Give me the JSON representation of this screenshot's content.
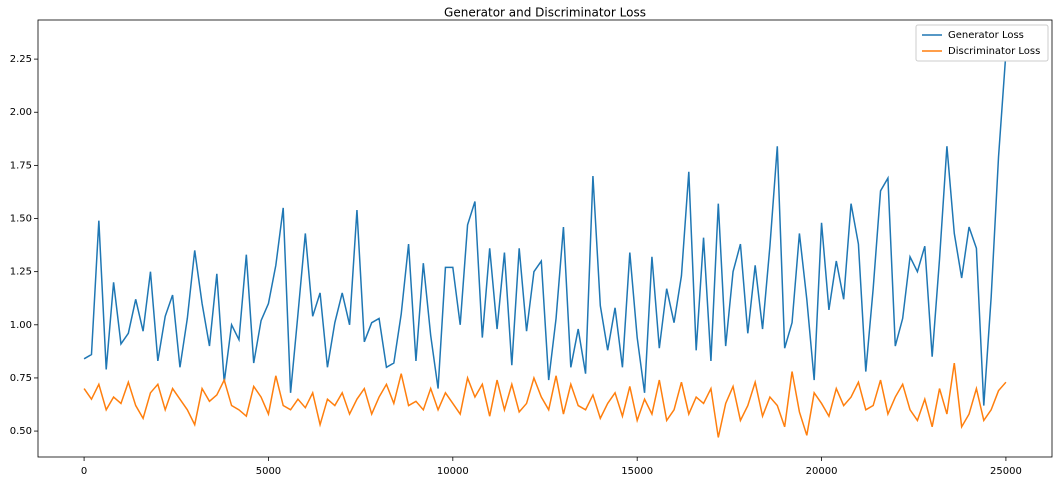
{
  "chart_data": {
    "type": "line",
    "title": "Generator and Discriminator Loss",
    "x": [
      0,
      200,
      400,
      600,
      800,
      1000,
      1200,
      1400,
      1600,
      1800,
      2000,
      2200,
      2400,
      2600,
      2800,
      3000,
      3200,
      3400,
      3600,
      3800,
      4000,
      4200,
      4400,
      4600,
      4800,
      5000,
      5200,
      5400,
      5600,
      5800,
      6000,
      6200,
      6400,
      6600,
      6800,
      7000,
      7200,
      7400,
      7600,
      7800,
      8000,
      8200,
      8400,
      8600,
      8800,
      9000,
      9200,
      9400,
      9600,
      9800,
      10000,
      10200,
      10400,
      10600,
      10800,
      11000,
      11200,
      11400,
      11600,
      11800,
      12000,
      12200,
      12400,
      12600,
      12800,
      13000,
      13200,
      13400,
      13600,
      13800,
      14000,
      14200,
      14400,
      14600,
      14800,
      15000,
      15200,
      15400,
      15600,
      15800,
      16000,
      16200,
      16400,
      16600,
      16800,
      17000,
      17200,
      17400,
      17600,
      17800,
      18000,
      18200,
      18400,
      18600,
      18800,
      19000,
      19200,
      19400,
      19600,
      19800,
      20000,
      20200,
      20400,
      20600,
      20800,
      21000,
      21200,
      21400,
      21600,
      21800,
      22000,
      22200,
      22400,
      22600,
      22800,
      23000,
      23200,
      23400,
      23600,
      23800,
      24000,
      24200,
      24400,
      24600,
      24800,
      25000
    ],
    "series": [
      {
        "name": "Generator Loss",
        "color": "#1f77b4",
        "values": [
          0.84,
          0.86,
          1.49,
          0.79,
          1.2,
          0.91,
          0.96,
          1.12,
          0.97,
          1.25,
          0.83,
          1.04,
          1.14,
          0.8,
          1.03,
          1.35,
          1.1,
          0.9,
          1.24,
          0.73,
          1.0,
          0.93,
          1.33,
          0.82,
          1.02,
          1.1,
          1.28,
          1.55,
          0.68,
          1.05,
          1.43,
          1.04,
          1.15,
          0.8,
          1.01,
          1.15,
          1.0,
          1.54,
          0.92,
          1.01,
          1.03,
          0.8,
          0.82,
          1.05,
          1.38,
          0.83,
          1.29,
          0.95,
          0.7,
          1.27,
          1.27,
          1.0,
          1.47,
          1.58,
          0.94,
          1.36,
          0.98,
          1.34,
          0.81,
          1.36,
          0.97,
          1.25,
          1.3,
          0.74,
          1.03,
          1.46,
          0.8,
          0.98,
          0.77,
          1.7,
          1.09,
          0.88,
          1.08,
          0.8,
          1.34,
          0.94,
          0.68,
          1.32,
          0.89,
          1.17,
          1.01,
          1.23,
          1.72,
          0.88,
          1.41,
          0.83,
          1.57,
          0.9,
          1.25,
          1.38,
          0.96,
          1.28,
          0.98,
          1.37,
          1.84,
          0.89,
          1.01,
          1.43,
          1.12,
          0.74,
          1.48,
          1.07,
          1.3,
          1.12,
          1.57,
          1.38,
          0.78,
          1.17,
          1.63,
          1.69,
          0.9,
          1.03,
          1.32,
          1.25,
          1.37,
          0.85,
          1.31,
          1.84,
          1.43,
          1.22,
          1.46,
          1.36,
          0.62,
          1.13,
          1.79,
          2.28
        ]
      },
      {
        "name": "Discriminator Loss",
        "color": "#ff7f0e",
        "values": [
          0.7,
          0.65,
          0.72,
          0.6,
          0.66,
          0.63,
          0.73,
          0.62,
          0.56,
          0.68,
          0.72,
          0.6,
          0.7,
          0.65,
          0.6,
          0.53,
          0.7,
          0.64,
          0.67,
          0.74,
          0.62,
          0.6,
          0.57,
          0.71,
          0.66,
          0.58,
          0.76,
          0.62,
          0.6,
          0.65,
          0.61,
          0.68,
          0.53,
          0.65,
          0.62,
          0.68,
          0.58,
          0.65,
          0.7,
          0.58,
          0.66,
          0.72,
          0.63,
          0.77,
          0.62,
          0.64,
          0.6,
          0.7,
          0.6,
          0.68,
          0.63,
          0.58,
          0.75,
          0.66,
          0.72,
          0.57,
          0.74,
          0.6,
          0.72,
          0.59,
          0.63,
          0.75,
          0.66,
          0.6,
          0.76,
          0.58,
          0.72,
          0.62,
          0.6,
          0.67,
          0.56,
          0.63,
          0.68,
          0.57,
          0.71,
          0.55,
          0.65,
          0.58,
          0.74,
          0.55,
          0.6,
          0.73,
          0.58,
          0.66,
          0.63,
          0.7,
          0.47,
          0.63,
          0.71,
          0.55,
          0.62,
          0.73,
          0.57,
          0.66,
          0.62,
          0.52,
          0.78,
          0.59,
          0.48,
          0.68,
          0.63,
          0.57,
          0.7,
          0.62,
          0.66,
          0.73,
          0.6,
          0.62,
          0.74,
          0.58,
          0.66,
          0.72,
          0.6,
          0.55,
          0.65,
          0.52,
          0.7,
          0.58,
          0.82,
          0.52,
          0.58,
          0.7,
          0.55,
          0.6,
          0.69,
          0.73
        ]
      }
    ],
    "xlim": [
      -1250,
      26250
    ],
    "xticks": [
      0,
      5000,
      10000,
      15000,
      20000,
      25000
    ],
    "ylim": [
      0.378,
      2.434
    ],
    "yticks": [
      {
        "value": 0.5,
        "label": "0.50"
      },
      {
        "value": 0.75,
        "label": "0.75"
      },
      {
        "value": 1,
        "label": "1.00"
      },
      {
        "value": 1.25,
        "label": "1.25"
      },
      {
        "value": 1.5,
        "label": "1.50"
      },
      {
        "value": 1.75,
        "label": "1.75"
      },
      {
        "value": 2,
        "label": "2.00"
      },
      {
        "value": 2.25,
        "label": "2.25"
      }
    ],
    "legend": "upper right"
  }
}
